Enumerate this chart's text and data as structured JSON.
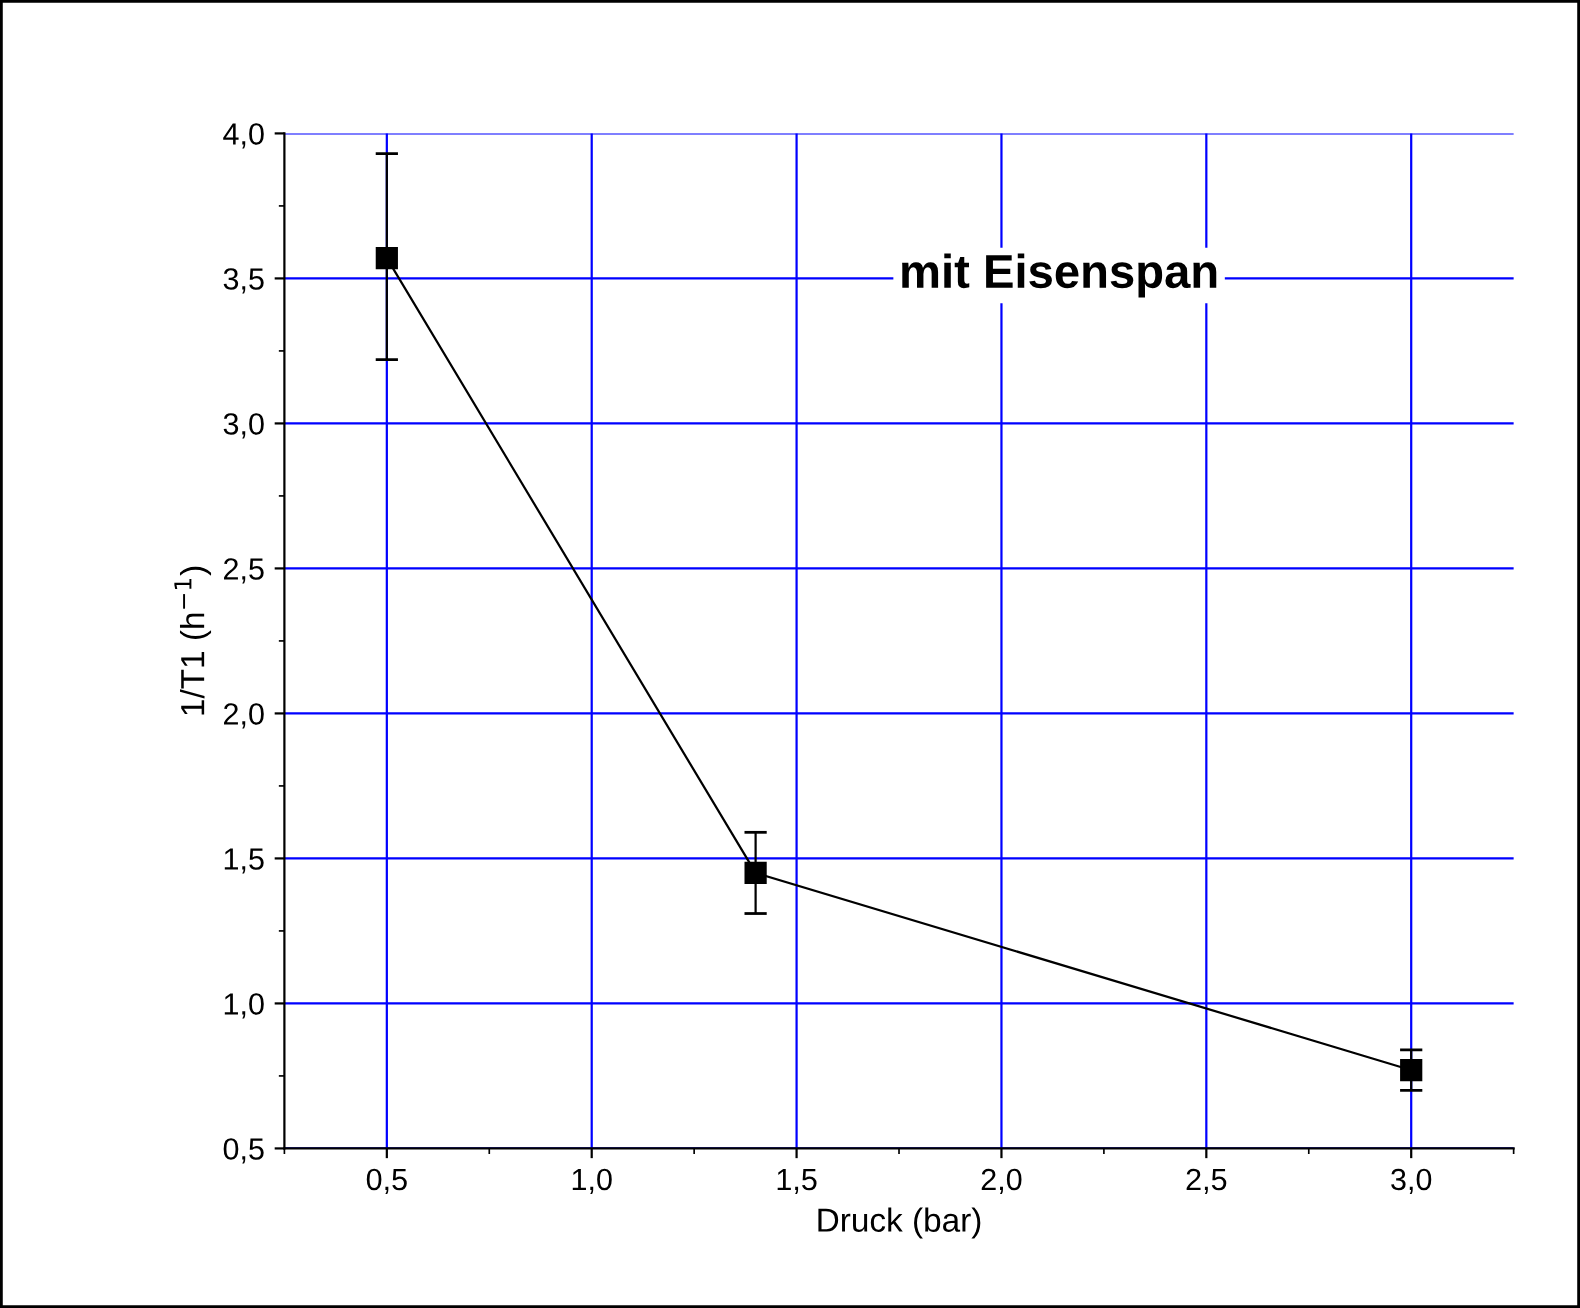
{
  "chart_data": {
    "type": "line",
    "xlabel": "Druck (bar)",
    "ylabel": "1/T1 (h$^{−1}$)",
    "annotations": [
      "mit Eisenspan"
    ],
    "x": [
      0.5,
      1.4,
      3.0
    ],
    "series": [
      {
        "color": "#000000",
        "values": [
          3.57,
          1.45,
          0.77
        ],
        "errors": [
          [
            3.22,
            3.93
          ],
          [
            1.31,
            1.59
          ],
          [
            0.7,
            0.84
          ]
        ]
      }
    ],
    "xlim": [
      0.25,
      3.25
    ],
    "xticks": [
      {
        "value": 0.5,
        "label": "0,5"
      },
      {
        "value": 1.0,
        "label": "1,0"
      },
      {
        "value": 1.5,
        "label": "1,5"
      },
      {
        "value": 2.0,
        "label": "2,0"
      },
      {
        "value": 2.5,
        "label": "2,5"
      },
      {
        "value": 3.0,
        "label": "3,0"
      }
    ],
    "ylim": [
      0.5,
      4.0
    ],
    "yticks": [
      {
        "value": 0.5,
        "label": "0,5"
      },
      {
        "value": 1.0,
        "label": "1,0"
      },
      {
        "value": 1.5,
        "label": "1,5"
      },
      {
        "value": 2.0,
        "label": "2,0"
      },
      {
        "value": 2.5,
        "label": "2,5"
      },
      {
        "value": 3.0,
        "label": "3,0"
      },
      {
        "value": 3.5,
        "label": "3,5"
      },
      {
        "value": 4.0,
        "label": "4,0"
      }
    ],
    "grid": true,
    "marker": "square",
    "line_style": "solid"
  }
}
